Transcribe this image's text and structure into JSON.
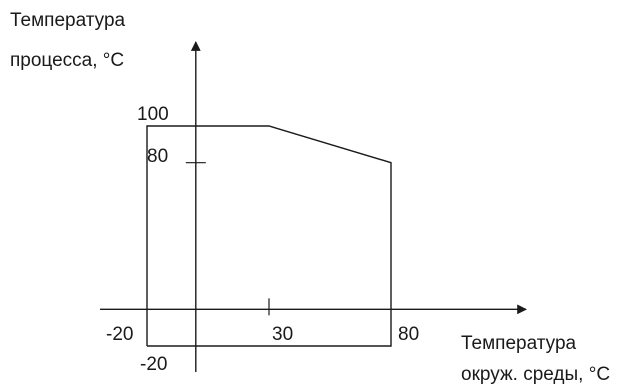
{
  "chart_data": {
    "type": "area",
    "title": "",
    "ylabel_lines": [
      "Температура",
      "процесса, °С"
    ],
    "xlabel_lines": [
      "Температура",
      "окруж. среды, °С"
    ],
    "xlim": [
      -20,
      80
    ],
    "ylim": [
      -20,
      100
    ],
    "series": [
      {
        "x": [
          -20,
          -20,
          30,
          80,
          80,
          -20
        ],
        "y": [
          -20,
          100,
          100,
          80,
          -20,
          -20
        ]
      }
    ],
    "x_ticks": [
      {
        "value": -20,
        "label": "-20"
      },
      {
        "value": 30,
        "label": "30"
      },
      {
        "value": 80,
        "label": "80"
      }
    ],
    "y_ticks": [
      {
        "value": 100,
        "label": "100"
      },
      {
        "value": 80,
        "label": "80"
      },
      {
        "value": -20,
        "label": "-20"
      }
    ],
    "grid": false,
    "legend": "none"
  }
}
